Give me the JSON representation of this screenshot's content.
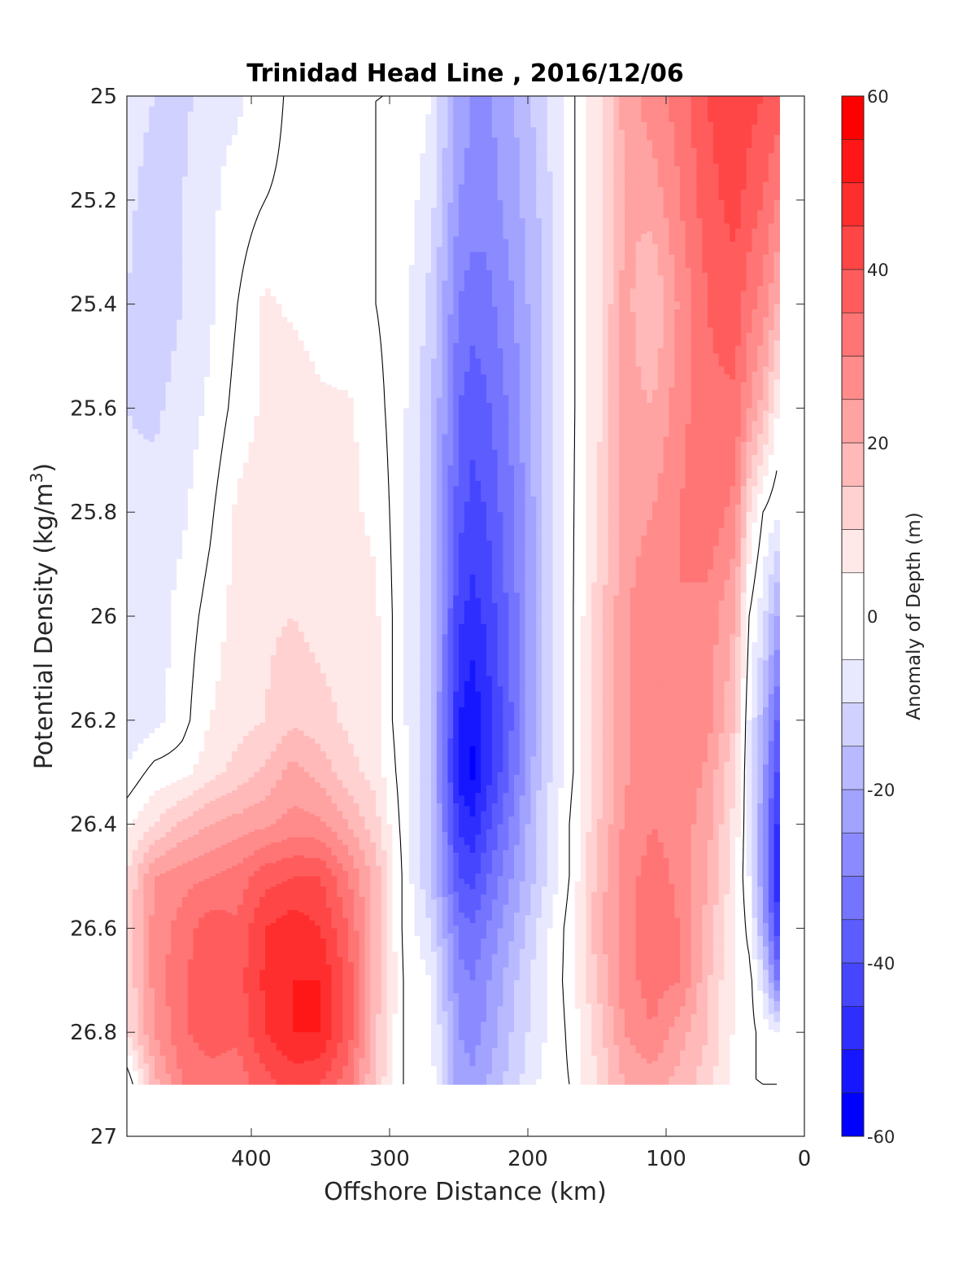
{
  "chart_data": {
    "type": "contourf",
    "title": "Trinidad Head Line , 2016/12/06",
    "xlabel": "Offshore Distance (km)",
    "ylabel": "Potential Density (kg/m",
    "ylabel_superscript": "3",
    "ylabel_suffix": ")",
    "xlim": [
      490,
      0
    ],
    "ylim": [
      25,
      27
    ],
    "x_reversed": true,
    "y_reversed": true,
    "x_ticks": [
      400,
      300,
      200,
      100,
      0
    ],
    "y_ticks": [
      25,
      25.2,
      25.4,
      25.6,
      25.8,
      26,
      26.2,
      26.4,
      26.6,
      26.8,
      27
    ],
    "colorbar": {
      "label": "Anomaly of Depth (m)",
      "range": [
        -60,
        60
      ],
      "ticks": [
        -60,
        -40,
        -20,
        0,
        20,
        40,
        60
      ],
      "level_step": 5,
      "low_color": "#0000ff",
      "mid_color": "#ffffff",
      "high_color": "#ff0000"
    },
    "data_extent": {
      "x": [
        490,
        20
      ],
      "y": [
        25,
        26.9
      ]
    },
    "grid": false,
    "x": [
      490,
      470,
      450,
      430,
      410,
      390,
      370,
      350,
      330,
      310,
      290,
      270,
      250,
      240,
      230,
      210,
      190,
      170,
      150,
      130,
      110,
      90,
      70,
      50,
      40,
      30,
      20
    ],
    "y": [
      25.0,
      25.2,
      25.4,
      25.6,
      25.8,
      26.0,
      26.2,
      26.3,
      26.4,
      26.5,
      26.6,
      26.7,
      26.8,
      26.9
    ],
    "z": [
      [
        -8,
        -10,
        -12,
        -6,
        -6,
        -2,
        1,
        2,
        0,
        0,
        0,
        -5,
        -22,
        -25,
        -26,
        -20,
        -12,
        -2,
        8,
        22,
        28,
        32,
        40,
        45,
        42,
        40,
        38
      ],
      [
        -9,
        -12,
        -10,
        -6,
        -3,
        0,
        1,
        0,
        0,
        0,
        -2,
        -8,
        -25,
        -27,
        -28,
        -22,
        -14,
        -2,
        8,
        20,
        22,
        30,
        38,
        42,
        38,
        35,
        30
      ],
      [
        -10,
        -13,
        -10,
        -6,
        0,
        6,
        4,
        2,
        0,
        0,
        -3,
        -12,
        -30,
        -33,
        -32,
        -25,
        -15,
        -2,
        8,
        22,
        15,
        26,
        35,
        38,
        32,
        28,
        20
      ],
      [
        -10,
        -11,
        -8,
        -4,
        2,
        6,
        9,
        6,
        6,
        2,
        -4,
        -14,
        -35,
        -38,
        -36,
        -28,
        -15,
        -2,
        8,
        22,
        20,
        28,
        34,
        34,
        25,
        18,
        6
      ],
      [
        -9,
        -8,
        -6,
        -1,
        6,
        8,
        10,
        8,
        6,
        4,
        -4,
        -15,
        -38,
        -42,
        -40,
        -30,
        -16,
        -2,
        10,
        22,
        25,
        30,
        34,
        28,
        10,
        0,
        -4
      ],
      [
        -9,
        -8,
        -3,
        2,
        7,
        9,
        10,
        8,
        7,
        6,
        -4,
        -15,
        -44,
        -47,
        -44,
        -32,
        -16,
        -2,
        12,
        24,
        30,
        30,
        28,
        20,
        0,
        -8,
        -20
      ],
      [
        -10,
        -7,
        -2,
        5,
        8,
        10,
        14,
        12,
        9,
        6,
        -4,
        -15,
        -50,
        -54,
        -48,
        -34,
        -16,
        -2,
        12,
        24,
        30,
        29,
        27,
        15,
        -5,
        -18,
        -35
      ],
      [
        -4,
        2,
        3,
        8,
        12,
        16,
        22,
        18,
        12,
        8,
        -3,
        -15,
        -52,
        -56,
        -48,
        -32,
        -14,
        -2,
        12,
        24,
        29,
        29,
        24,
        10,
        -5,
        -22,
        -40
      ],
      [
        4,
        10,
        16,
        20,
        22,
        24,
        27,
        26,
        20,
        12,
        -2,
        -15,
        -46,
        -49,
        -42,
        -28,
        -12,
        0,
        14,
        26,
        30,
        28,
        22,
        8,
        -5,
        -25,
        -45
      ],
      [
        10,
        25,
        28,
        30,
        32,
        38,
        40,
        40,
        30,
        18,
        -1,
        -15,
        -40,
        -42,
        -36,
        -24,
        -12,
        0,
        16,
        28,
        32,
        29,
        20,
        6,
        -5,
        -25,
        -48
      ],
      [
        12,
        27,
        32,
        38,
        36,
        45,
        48,
        45,
        35,
        18,
        -1,
        -10,
        -32,
        -34,
        -30,
        -20,
        -8,
        2,
        18,
        28,
        32,
        30,
        18,
        6,
        -2,
        -20,
        -42
      ],
      [
        10,
        27,
        34,
        40,
        38,
        46,
        50,
        50,
        38,
        18,
        0,
        -5,
        -28,
        -30,
        -26,
        -16,
        -6,
        2,
        15,
        28,
        32,
        30,
        16,
        4,
        2,
        -8,
        -30
      ],
      [
        10,
        25,
        34,
        38,
        36,
        45,
        50,
        50,
        38,
        16,
        0,
        -3,
        -25,
        -27,
        -24,
        -14,
        -6,
        1,
        12,
        25,
        30,
        22,
        15,
        4,
        2,
        -2,
        -5
      ],
      [
        -5,
        18,
        30,
        32,
        32,
        38,
        42,
        40,
        32,
        14,
        0,
        -3,
        -22,
        -24,
        -20,
        -12,
        -4,
        0,
        10,
        20,
        22,
        18,
        12,
        2,
        0,
        0,
        0
      ]
    ]
  }
}
